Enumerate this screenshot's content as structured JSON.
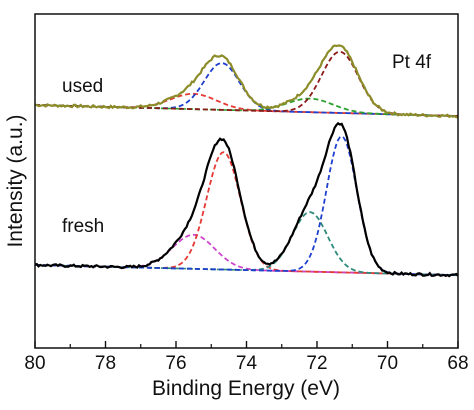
{
  "chart_data": {
    "type": "line",
    "title": "",
    "annotation": "Pt 4f",
    "xlabel": "Binding Energy (eV)",
    "ylabel": "Intensity (a.u.)",
    "xlim": [
      80,
      68
    ],
    "x_reversed": true,
    "x_ticks": [
      "80",
      "78",
      "76",
      "74",
      "72",
      "70",
      "68"
    ],
    "y_ticks_shown": false,
    "grid": false,
    "legend": "none",
    "groups": [
      {
        "label": "used",
        "baseline": 0.99,
        "background": {
          "left": 0.99,
          "right": 0.86,
          "color": "#2ca02c"
        },
        "envelope_color": "#8c8c2a",
        "components": [
          {
            "center": 75.5,
            "width": 0.65,
            "height": 0.18,
            "color": "#e53935"
          },
          {
            "center": 74.7,
            "width": 0.5,
            "height": 0.55,
            "color": "#1f3fcf"
          },
          {
            "center": 72.2,
            "width": 0.65,
            "height": 0.16,
            "color": "#2ca02c"
          },
          {
            "center": 71.35,
            "width": 0.52,
            "height": 0.72,
            "color": "#8b1a1a"
          }
        ]
      },
      {
        "label": "fresh",
        "baseline": 0.07,
        "background": {
          "left": 0.07,
          "right": -0.05,
          "color": "#2e8b7a"
        },
        "envelope_color": "#000000",
        "components": [
          {
            "center": 75.5,
            "width": 0.6,
            "height": 0.4,
            "color": "#cc44cc"
          },
          {
            "center": 74.65,
            "width": 0.48,
            "height": 1.38,
            "color": "#e53935"
          },
          {
            "center": 72.2,
            "width": 0.5,
            "height": 0.7,
            "color": "#2e8b7a"
          },
          {
            "center": 71.3,
            "width": 0.43,
            "height": 1.6,
            "color": "#1f3fcf"
          }
        ]
      }
    ]
  }
}
